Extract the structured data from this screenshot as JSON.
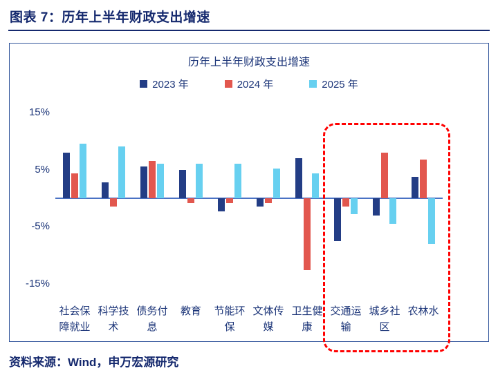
{
  "header": {
    "title": "图表 7：历年上半年财政支出增速"
  },
  "footer": {
    "source": "资料来源：Wind，申万宏源研究"
  },
  "colors": {
    "navy": "#15296e",
    "text_navy": "#1b3478",
    "axis": "#4a72c4",
    "panel_border": "#31549b",
    "highlight": "#ff0000"
  },
  "chart_data": {
    "type": "bar",
    "title": "历年上半年财政支出增速",
    "categories": [
      "社会保障就业",
      "科学技术",
      "债务付息",
      "教育",
      "节能环保",
      "文体传媒",
      "卫生健康",
      "交通运输",
      "城乡社区",
      "农林水"
    ],
    "series": [
      {
        "name": "2023 年",
        "color": "#233d85",
        "values": [
          8.0,
          2.8,
          5.5,
          5.0,
          -2.3,
          -1.5,
          7.0,
          -7.5,
          -3.0,
          3.8
        ]
      },
      {
        "name": "2024 年",
        "color": "#e2574e",
        "values": [
          4.3,
          -1.5,
          6.5,
          -0.8,
          -0.8,
          -0.8,
          -12.5,
          -1.5,
          8.0,
          6.8
        ]
      },
      {
        "name": "2025 年",
        "color": "#67d0f0",
        "values": [
          9.5,
          9.0,
          6.0,
          6.0,
          6.0,
          5.2,
          4.3,
          -2.8,
          -4.5,
          -8.0
        ]
      }
    ],
    "ylabel": "",
    "xlabel": "",
    "yticks": [
      15,
      5,
      -5,
      -15
    ],
    "ytick_suffix": "%",
    "ylim": [
      -17.5,
      17.5
    ],
    "grid": false,
    "legend_position": "top",
    "highlight_box": {
      "style": "red-dashed-rounded",
      "start_index": 7,
      "end_index": 9,
      "from_category": "交通运输",
      "to_category": "农林水"
    }
  }
}
